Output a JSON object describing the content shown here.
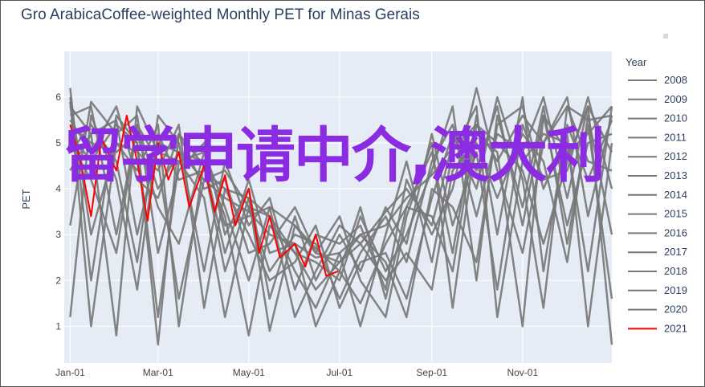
{
  "title": "Gro ArabicaCoffee-weighted Monthly PET for Minas Gerais",
  "overlay_text": "留学申请中介,澳大利",
  "colors": {
    "background": "#e5ecf6",
    "history": "#777777",
    "current": "#ff0000",
    "text": "#2a3f5f"
  },
  "chart_data": {
    "type": "line",
    "title": "Gro ArabicaCoffee-weighted Monthly PET for Minas Gerais",
    "xlabel": "",
    "ylabel": "PET",
    "x_range": [
      "2000-12-28",
      "2001-12-31"
    ],
    "ylim": [
      0.2,
      7.0
    ],
    "y_ticks": [
      1,
      2,
      3,
      4,
      5,
      6
    ],
    "x_tick_labels": [
      "Jan-01",
      "Mar-01",
      "May-01",
      "Jul-01",
      "Sep-01",
      "Nov-01"
    ],
    "legend": {
      "title": "Year",
      "placement": "right"
    },
    "grid": true,
    "series": [
      {
        "name": "2008",
        "color": "#777777",
        "x": [
          "01-01",
          "01-15",
          "02-01",
          "02-15",
          "03-01",
          "03-15",
          "04-01",
          "04-15",
          "05-01",
          "05-15",
          "06-01",
          "06-15",
          "07-01",
          "07-15",
          "08-01",
          "08-15",
          "09-01",
          "09-15",
          "10-01",
          "10-15",
          "11-01",
          "11-15",
          "12-01",
          "12-15",
          "12-31"
        ],
        "values": [
          5.8,
          5.2,
          5.5,
          3.0,
          5.0,
          4.8,
          4.2,
          3.8,
          3.5,
          3.0,
          2.8,
          2.5,
          2.6,
          3.0,
          3.2,
          3.8,
          4.3,
          4.9,
          5.4,
          4.6,
          5.6,
          5.0,
          5.8,
          5.5,
          5.6
        ]
      },
      {
        "name": "2009",
        "color": "#777777",
        "x": [
          "01-01",
          "01-15",
          "02-01",
          "02-15",
          "03-01",
          "03-15",
          "04-01",
          "04-15",
          "05-01",
          "05-15",
          "06-01",
          "06-15",
          "07-01",
          "07-15",
          "08-01",
          "08-15",
          "09-01",
          "09-15",
          "10-01",
          "10-15",
          "11-01",
          "11-15",
          "12-01",
          "12-15",
          "12-31"
        ],
        "values": [
          5.5,
          4.8,
          5.8,
          4.2,
          3.8,
          5.2,
          4.5,
          2.2,
          3.8,
          3.4,
          2.6,
          1.8,
          2.4,
          2.8,
          3.5,
          4.0,
          3.2,
          5.0,
          4.4,
          5.8,
          3.2,
          5.6,
          4.8,
          5.2,
          5.8
        ]
      },
      {
        "name": "2010",
        "color": "#777777",
        "x": [
          "01-01",
          "01-15",
          "02-01",
          "02-15",
          "03-01",
          "03-15",
          "04-01",
          "04-15",
          "05-01",
          "05-15",
          "06-01",
          "06-15",
          "07-01",
          "07-15",
          "08-01",
          "08-15",
          "09-01",
          "09-15",
          "10-01",
          "10-15",
          "11-01",
          "11-15",
          "12-01",
          "12-15",
          "12-31"
        ],
        "values": [
          6.2,
          2.0,
          5.6,
          5.0,
          1.2,
          4.6,
          4.8,
          3.6,
          2.0,
          3.6,
          3.2,
          2.7,
          2.2,
          1.5,
          2.8,
          3.6,
          4.8,
          2.6,
          5.6,
          3.0,
          6.0,
          2.2,
          5.4,
          4.2,
          5.5
        ]
      },
      {
        "name": "2011",
        "color": "#777777",
        "x": [
          "01-01",
          "01-15",
          "02-01",
          "02-15",
          "03-01",
          "03-15",
          "04-01",
          "04-15",
          "05-01",
          "05-15",
          "06-01",
          "06-15",
          "07-01",
          "07-15",
          "08-01",
          "08-15",
          "09-01",
          "09-15",
          "10-01",
          "10-15",
          "11-01",
          "11-15",
          "12-01",
          "12-15",
          "12-31"
        ],
        "values": [
          5.6,
          5.8,
          3.0,
          5.4,
          4.6,
          1.6,
          4.2,
          4.4,
          3.6,
          2.2,
          3.0,
          2.8,
          1.6,
          2.6,
          3.4,
          2.4,
          4.6,
          5.4,
          3.4,
          5.2,
          4.8,
          6.0,
          3.8,
          5.8,
          4.8
        ]
      },
      {
        "name": "2012",
        "color": "#777777",
        "x": [
          "01-01",
          "01-15",
          "02-01",
          "02-15",
          "03-01",
          "03-15",
          "04-01",
          "04-15",
          "05-01",
          "05-15",
          "06-01",
          "06-15",
          "07-01",
          "07-15",
          "08-01",
          "08-15",
          "09-01",
          "09-15",
          "10-01",
          "10-15",
          "11-01",
          "11-15",
          "12-01",
          "12-15",
          "12-31"
        ],
        "values": [
          4.8,
          5.4,
          4.6,
          2.4,
          5.6,
          5.0,
          2.2,
          4.6,
          3.2,
          3.8,
          1.8,
          3.0,
          2.8,
          3.2,
          1.8,
          4.2,
          3.0,
          4.0,
          6.2,
          4.4,
          2.6,
          5.0,
          6.0,
          3.4,
          5.6
        ]
      },
      {
        "name": "2013",
        "color": "#777777",
        "x": [
          "01-01",
          "01-15",
          "02-01",
          "02-15",
          "03-01",
          "03-15",
          "04-01",
          "04-15",
          "05-01",
          "05-15",
          "06-01",
          "06-15",
          "07-01",
          "07-15",
          "08-01",
          "08-15",
          "09-01",
          "09-15",
          "10-01",
          "10-15",
          "11-01",
          "11-15",
          "12-01",
          "12-15",
          "12-31"
        ],
        "values": [
          3.2,
          5.9,
          5.2,
          5.6,
          2.6,
          4.4,
          5.0,
          3.0,
          4.0,
          1.6,
          3.4,
          2.0,
          3.0,
          2.2,
          3.6,
          2.8,
          5.2,
          3.2,
          4.8,
          1.8,
          5.4,
          4.2,
          4.4,
          6.0,
          4.0
        ]
      },
      {
        "name": "2014",
        "color": "#777777",
        "x": [
          "01-01",
          "01-15",
          "02-01",
          "02-15",
          "03-01",
          "03-15",
          "04-01",
          "04-15",
          "05-01",
          "05-15",
          "06-01",
          "06-15",
          "07-01",
          "07-15",
          "08-01",
          "08-15",
          "09-01",
          "09-15",
          "10-01",
          "10-15",
          "11-01",
          "11-15",
          "12-01",
          "12-15",
          "12-31"
        ],
        "values": [
          5.9,
          1.0,
          5.0,
          4.4,
          5.4,
          1.0,
          4.6,
          3.4,
          0.8,
          3.2,
          2.6,
          2.4,
          2.0,
          3.4,
          2.2,
          3.0,
          4.4,
          5.8,
          2.0,
          5.6,
          3.6,
          5.8,
          2.8,
          5.4,
          1.6
        ]
      },
      {
        "name": "2015",
        "color": "#777777",
        "x": [
          "01-01",
          "01-15",
          "02-01",
          "02-15",
          "03-01",
          "03-15",
          "04-01",
          "04-15",
          "05-01",
          "05-15",
          "06-01",
          "06-15",
          "07-01",
          "07-15",
          "08-01",
          "08-15",
          "09-01",
          "09-15",
          "10-01",
          "10-15",
          "11-01",
          "11-15",
          "12-01",
          "12-15",
          "12-31"
        ],
        "values": [
          4.4,
          5.2,
          0.8,
          5.8,
          4.8,
          4.6,
          3.8,
          1.2,
          3.6,
          3.4,
          2.2,
          1.4,
          2.6,
          1.0,
          3.0,
          4.6,
          2.4,
          4.8,
          5.8,
          1.2,
          4.6,
          5.2,
          5.0,
          2.2,
          5.8
        ]
      },
      {
        "name": "2016",
        "color": "#777777",
        "x": [
          "01-01",
          "01-15",
          "02-01",
          "02-15",
          "03-01",
          "03-15",
          "04-01",
          "04-15",
          "05-01",
          "05-15",
          "06-01",
          "06-15",
          "07-01",
          "07-15",
          "08-01",
          "08-15",
          "09-01",
          "09-15",
          "10-01",
          "10-15",
          "11-01",
          "11-15",
          "12-01",
          "12-15",
          "12-31"
        ],
        "values": [
          5.2,
          4.6,
          5.4,
          5.0,
          0.6,
          5.2,
          4.0,
          4.2,
          2.6,
          2.8,
          3.6,
          2.6,
          3.4,
          2.0,
          1.2,
          3.4,
          5.0,
          1.4,
          5.2,
          4.8,
          1.0,
          5.6,
          3.2,
          5.0,
          5.2
        ]
      },
      {
        "name": "2017",
        "color": "#777777",
        "x": [
          "01-01",
          "01-15",
          "02-01",
          "02-15",
          "03-01",
          "03-15",
          "04-01",
          "04-15",
          "05-01",
          "05-15",
          "06-01",
          "06-15",
          "07-01",
          "07-15",
          "08-01",
          "08-15",
          "09-01",
          "09-15",
          "10-01",
          "10-15",
          "11-01",
          "11-15",
          "12-01",
          "12-15",
          "12-31"
        ],
        "values": [
          1.2,
          5.6,
          4.2,
          1.8,
          5.2,
          4.2,
          4.4,
          4.0,
          3.0,
          2.0,
          2.4,
          3.2,
          1.4,
          2.4,
          2.6,
          1.6,
          3.8,
          5.2,
          4.0,
          6.0,
          4.2,
          1.4,
          5.8,
          4.6,
          4.4
        ]
      },
      {
        "name": "2018",
        "color": "#777777",
        "x": [
          "01-01",
          "01-15",
          "02-01",
          "02-15",
          "03-01",
          "03-15",
          "04-01",
          "04-15",
          "05-01",
          "05-15",
          "06-01",
          "06-15",
          "07-01",
          "07-15",
          "08-01",
          "08-15",
          "09-01",
          "09-15",
          "10-01",
          "10-15",
          "11-01",
          "11-15",
          "12-01",
          "12-15",
          "12-31"
        ],
        "values": [
          5.4,
          5.0,
          4.8,
          5.2,
          3.6,
          2.8,
          4.8,
          3.2,
          3.4,
          3.6,
          1.2,
          2.2,
          3.2,
          2.8,
          2.0,
          2.6,
          1.8,
          4.4,
          5.0,
          3.8,
          5.2,
          4.6,
          2.4,
          5.6,
          3.0
        ]
      },
      {
        "name": "2019",
        "color": "#777777",
        "x": [
          "01-01",
          "01-15",
          "02-01",
          "02-15",
          "03-01",
          "03-15",
          "04-01",
          "04-15",
          "05-01",
          "05-15",
          "06-01",
          "06-15",
          "07-01",
          "07-15",
          "08-01",
          "08-15",
          "09-01",
          "09-15",
          "10-01",
          "10-15",
          "11-01",
          "11-15",
          "12-01",
          "12-15",
          "12-31"
        ],
        "values": [
          6.0,
          3.0,
          5.0,
          4.8,
          4.4,
          5.4,
          1.4,
          4.0,
          3.8,
          0.9,
          3.2,
          2.6,
          2.4,
          3.0,
          2.4,
          1.2,
          4.0,
          3.6,
          2.4,
          5.4,
          5.8,
          4.0,
          5.2,
          1.0,
          5.0
        ]
      },
      {
        "name": "2020",
        "color": "#777777",
        "x": [
          "01-01",
          "01-15",
          "02-01",
          "02-15",
          "03-01",
          "03-15",
          "04-01",
          "04-15",
          "05-01",
          "05-15",
          "06-01",
          "06-15",
          "07-01",
          "07-15",
          "08-01",
          "08-15",
          "09-01",
          "09-15",
          "10-01",
          "10-15",
          "11-01",
          "11-15",
          "12-01",
          "12-15",
          "12-31"
        ],
        "values": [
          5.0,
          4.2,
          2.6,
          5.4,
          4.0,
          4.8,
          4.6,
          2.6,
          4.2,
          2.6,
          2.8,
          1.0,
          2.2,
          3.6,
          1.6,
          3.6,
          3.4,
          2.2,
          5.4,
          5.0,
          4.4,
          2.8,
          4.6,
          5.8,
          0.6
        ]
      },
      {
        "name": "2021",
        "color": "#ff0000",
        "x": [
          "01-01",
          "01-08",
          "01-15",
          "01-22",
          "02-01",
          "02-08",
          "02-15",
          "02-22",
          "03-01",
          "03-08",
          "03-15",
          "03-22",
          "04-01",
          "04-08",
          "04-15",
          "04-22",
          "05-01",
          "05-08",
          "05-15",
          "05-22",
          "06-01",
          "06-08",
          "06-15",
          "06-22",
          "06-30"
        ],
        "values": [
          5.4,
          4.6,
          3.4,
          5.1,
          4.4,
          5.6,
          4.6,
          3.3,
          5.0,
          4.2,
          4.8,
          3.6,
          4.5,
          3.5,
          4.3,
          3.2,
          4.0,
          2.6,
          3.4,
          2.5,
          2.8,
          2.3,
          3.0,
          2.1,
          2.2
        ]
      }
    ]
  }
}
